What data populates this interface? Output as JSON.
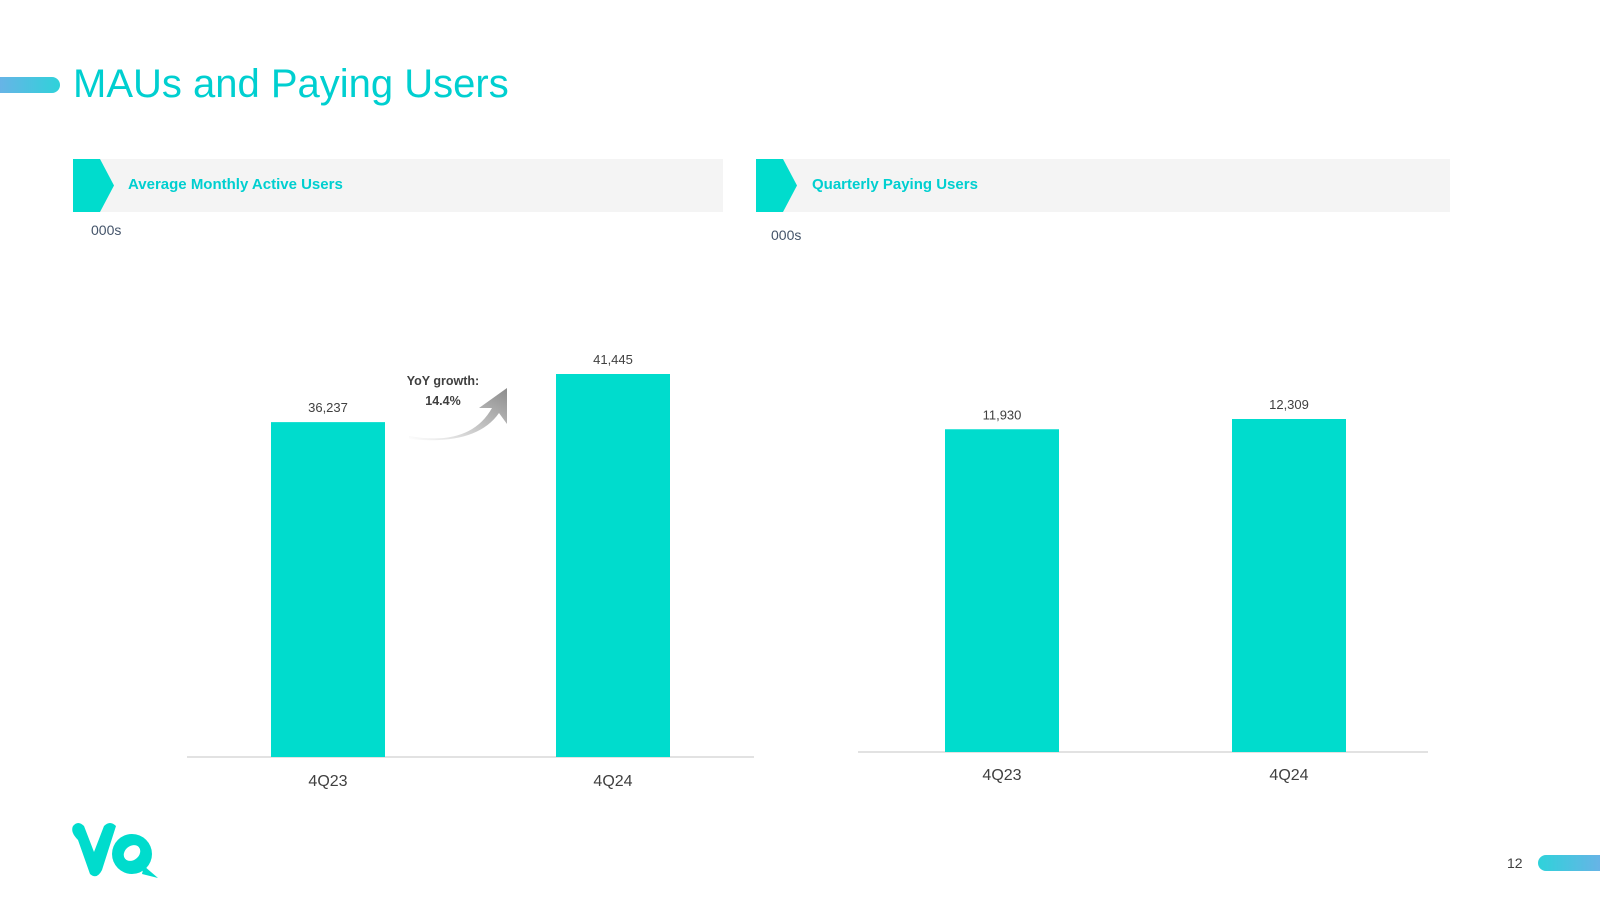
{
  "slide": {
    "title": "MAUs and Paying Users",
    "page_number": "12",
    "accent_color": "#00dccd",
    "title_color": "#00cfd0"
  },
  "panels": [
    {
      "header": "Average Monthly Active Users",
      "unit": "000s"
    },
    {
      "header": "Quarterly Paying Users",
      "unit": "000s"
    }
  ],
  "annotation": {
    "line1": "YoY growth:",
    "line2": "14.4%"
  },
  "logo": {
    "icon": "yalla-logo"
  },
  "chart_data": [
    {
      "type": "bar",
      "title": "Average Monthly Active Users",
      "ylabel": "000s",
      "categories": [
        "4Q23",
        "4Q24"
      ],
      "values": [
        36237,
        41445
      ],
      "value_labels": [
        "36,237",
        "41,445"
      ],
      "bar_color": "#00dccd",
      "grid": false,
      "legend": "none"
    },
    {
      "type": "bar",
      "title": "Quarterly Paying Users",
      "ylabel": "000s",
      "categories": [
        "4Q23",
        "4Q24"
      ],
      "values": [
        11930,
        12309
      ],
      "value_labels": [
        "11,930",
        "12,309"
      ],
      "bar_color": "#00dccd",
      "grid": false,
      "legend": "none"
    }
  ]
}
